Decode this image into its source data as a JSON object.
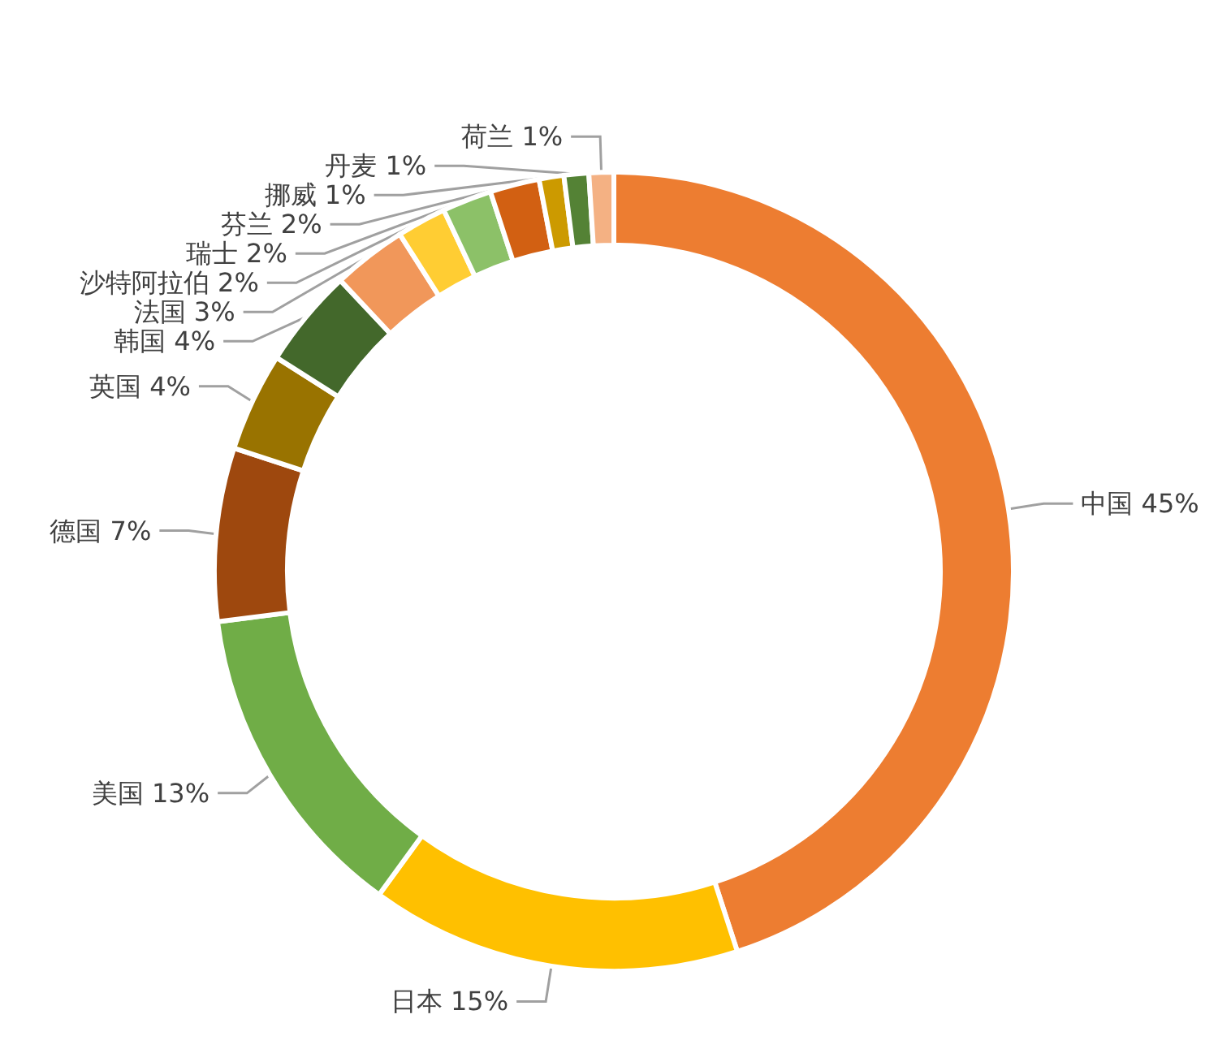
{
  "chart_data": {
    "type": "donut",
    "categories": [
      "中国",
      "日本",
      "美国",
      "德国",
      "英国",
      "韩国",
      "法国",
      "沙特阿拉伯",
      "瑞士",
      "芬兰",
      "挪威",
      "丹麦",
      "荷兰"
    ],
    "values": [
      45,
      15,
      13,
      7,
      4,
      4,
      3,
      2,
      2,
      2,
      1,
      1,
      1
    ],
    "value_labels": [
      "45%",
      "15%",
      "13%",
      "7%",
      "4%",
      "4%",
      "3%",
      "2%",
      "2%",
      "2%",
      "1%",
      "1%",
      "1%"
    ],
    "colors": [
      "#ed7d31",
      "#ffc000",
      "#70ad47",
      "#9e480e",
      "#997300",
      "#43682b",
      "#f1975a",
      "#ffcd33",
      "#8cc168",
      "#d26012",
      "#cc9a00",
      "#548235",
      "#f4b183"
    ],
    "legend": false
  }
}
